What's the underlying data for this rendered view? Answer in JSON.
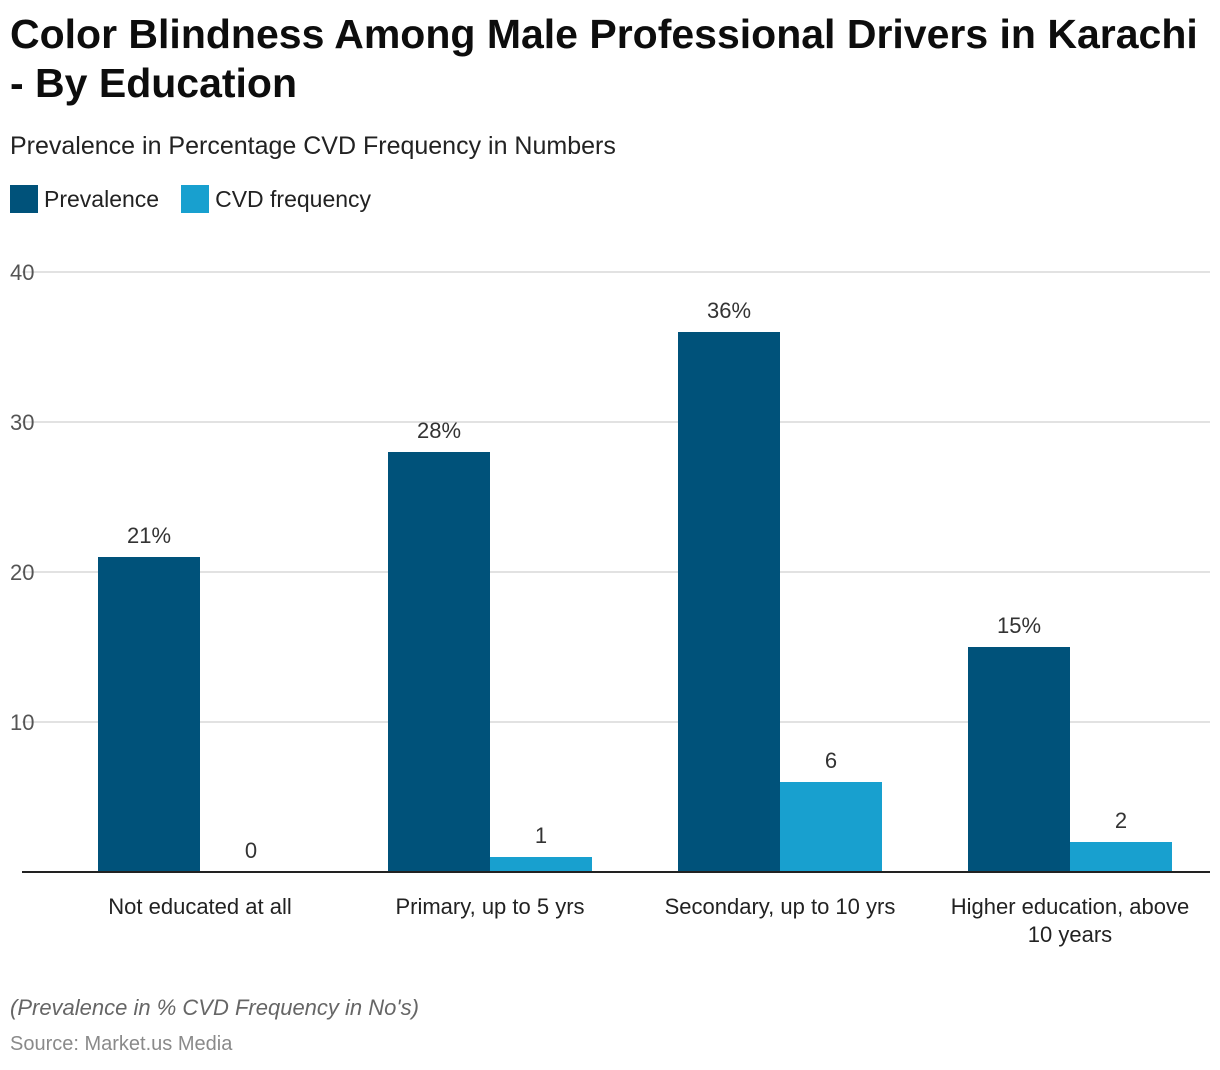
{
  "header": {
    "title": "Color Blindness Among Male Professional Drivers in Karachi - By Education",
    "subtitle": "Prevalence in Percentage CVD Frequency in Numbers"
  },
  "legend": {
    "items": [
      {
        "label": "Prevalence",
        "color": "#00527a"
      },
      {
        "label": "CVD frequency",
        "color": "#18a0cf"
      }
    ]
  },
  "chart_data": {
    "type": "bar",
    "categories": [
      [
        "Not educated at all"
      ],
      [
        "Primary, up to 5 yrs"
      ],
      [
        "Secondary, up to 10 yrs"
      ],
      [
        "Higher education, above",
        "10 years"
      ]
    ],
    "series": [
      {
        "name": "Prevalence",
        "color": "#00527a",
        "values": [
          21,
          28,
          36,
          15
        ],
        "labels": [
          "21%",
          "28%",
          "36%",
          "15%"
        ]
      },
      {
        "name": "CVD frequency",
        "color": "#18a0cf",
        "values": [
          0,
          1,
          6,
          2
        ],
        "labels": [
          "0",
          "1",
          "6",
          "2"
        ]
      }
    ],
    "yticks": [
      "10",
      "20",
      "30",
      "40"
    ],
    "ylim": [
      0,
      40
    ],
    "grid": true,
    "legend_position": "top-left"
  },
  "footer": {
    "note": "(Prevalence in % CVD Frequency in No's)",
    "source": "Source: Market.us Media"
  }
}
